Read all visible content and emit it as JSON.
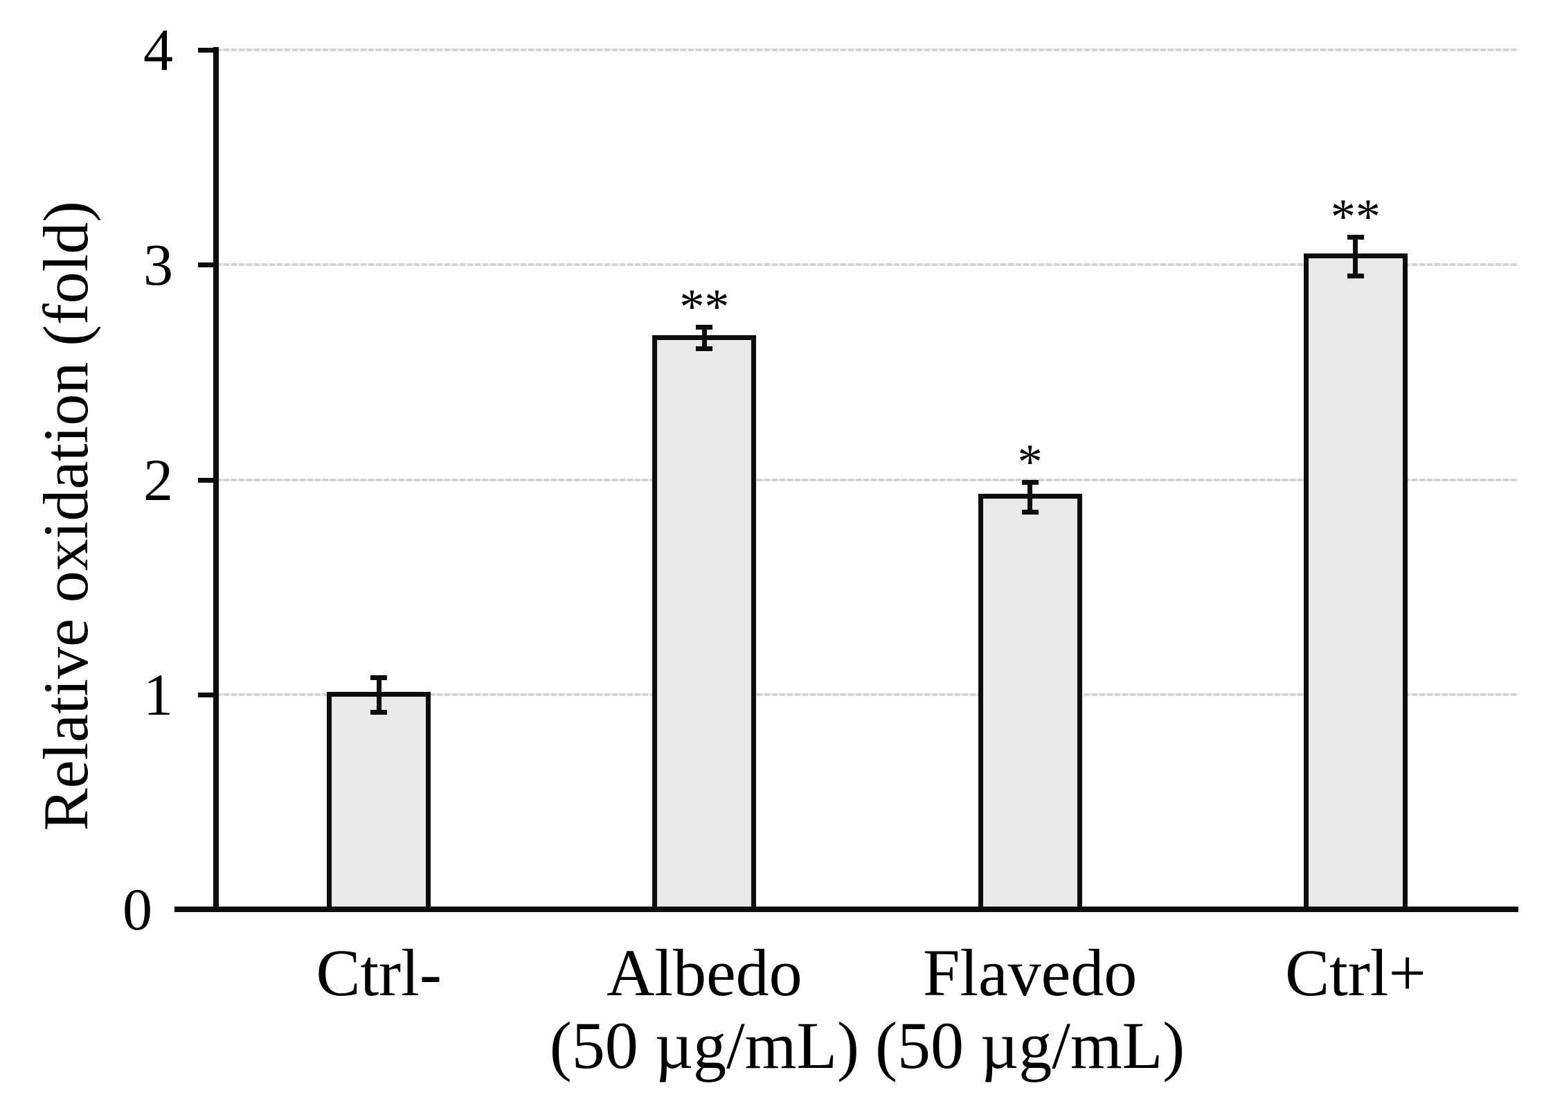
{
  "chart_data": {
    "type": "bar",
    "title": "",
    "xlabel": "",
    "ylabel": "Relative oxidation (fold)",
    "categories": [
      "Ctrl-",
      "Albedo (50 µg/mL)",
      "Flavedo (50 µg/mL)",
      "Ctrl+"
    ],
    "category_label_lines": [
      [
        "Ctrl-"
      ],
      [
        "Albedo",
        "(50 µg/mL)"
      ],
      [
        "Flavedo",
        "(50 µg/mL)"
      ],
      [
        "Ctrl+"
      ]
    ],
    "values": [
      1.0,
      2.66,
      1.92,
      3.04
    ],
    "error_bars": [
      0.08,
      0.05,
      0.07,
      0.09
    ],
    "significance": [
      "",
      "**",
      "*",
      "**"
    ],
    "ylim": [
      0,
      4
    ],
    "yticks": [
      0,
      1,
      2,
      3,
      4
    ],
    "ytick_labels": [
      "0",
      "1",
      "2",
      "3",
      "4"
    ],
    "grid": {
      "horizontal": true,
      "at_values": [
        1,
        2,
        3,
        4
      ]
    },
    "legend_position": "none",
    "colors": {
      "bar_fill": "#e9e9e9",
      "bar_border": "#0d0d0d",
      "gridline": "#d4d4d4",
      "axis": "#0d0d0d",
      "text": "#000000",
      "background": "#ffffff"
    }
  }
}
